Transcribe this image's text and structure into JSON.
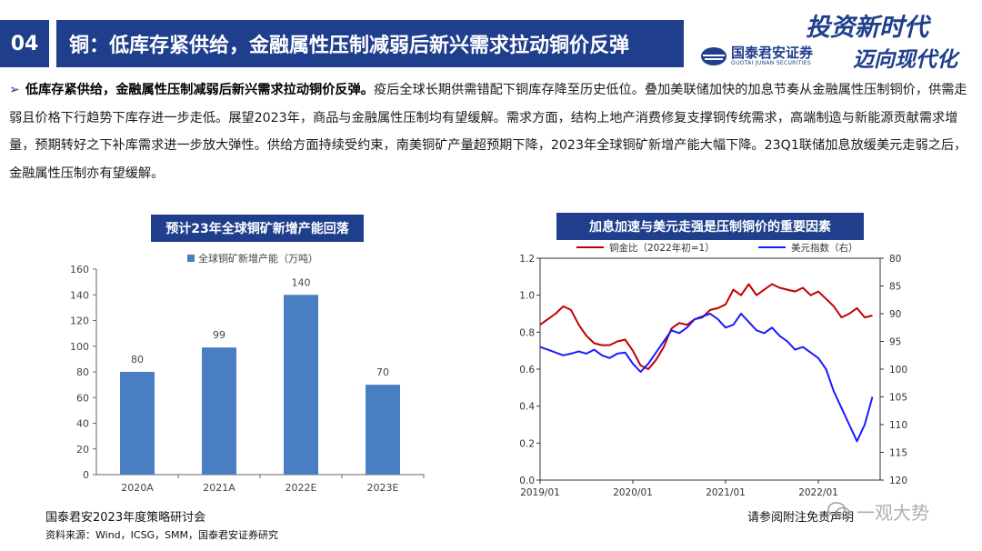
{
  "header": {
    "section_number": "04",
    "title": "铜：低库存紧供给，金融属性压制减弱后新兴需求拉动铜价反弹",
    "logo_cn": "国泰君安证券",
    "logo_en": "GUOTAI JUNAN SECURITIES",
    "slogan_line1": "投资新时代",
    "slogan_line2": "迈向现代化"
  },
  "body": {
    "lead": "低库存紧供给，金融属性压制减弱后新兴需求拉动铜价反弹。",
    "text": "疫后全球长期供需错配下铜库存降至历史低位。叠加美联储加快的加息节奏从金融属性压制铜价，供需走弱且价格下行趋势下库存进一步走低。展望2023年，商品与金融属性压制均有望缓解。需求方面，结构上地产消费修复支撑铜传统需求，高端制造与新能源贡献需求增量，预期转好之下补库需求进一步放大弹性。供给方面持续受约束，南美铜矿产量超预期下降，2023年全球铜矿新增产能大幅下降。23Q1联储加息放缓美元走弱之后，金融属性压制亦有望缓解。"
  },
  "chart_data": [
    {
      "type": "bar",
      "title": "预计23年全球铜矿新增产能回落",
      "legend": "全球铜矿新增产能（万吨）",
      "legend_position": "top-left",
      "categories": [
        "2020A",
        "2021A",
        "2022E",
        "2023E"
      ],
      "values": [
        80,
        99,
        140,
        70
      ],
      "ylim": [
        0,
        160
      ],
      "yticks": [
        0,
        20,
        40,
        60,
        80,
        100,
        120,
        140,
        160
      ],
      "color": "#4a7ec2",
      "grid": false
    },
    {
      "type": "line",
      "title": "加息加速与美元走强是压制铜价的重要因素",
      "x_ticks": [
        "2019/01",
        "2020/01",
        "2021/01",
        "2022/01"
      ],
      "y_left_ticks": [
        "0.0",
        "0.2",
        "0.4",
        "0.6",
        "0.8",
        "1.0",
        "1.2"
      ],
      "y_right_ticks": [
        "80",
        "85",
        "90",
        "95",
        "100",
        "105",
        "110",
        "115",
        "120"
      ],
      "y_left_lim": [
        0,
        1.2
      ],
      "y_right_lim": [
        80,
        120
      ],
      "y_right_inverted": true,
      "legend_position": "top",
      "series": [
        {
          "name": "铜金比（2022年初=1）",
          "axis": "left",
          "color": "#c00000",
          "points": [
            [
              0,
              0.84
            ],
            [
              1,
              0.87
            ],
            [
              2,
              0.9
            ],
            [
              3,
              0.94
            ],
            [
              4,
              0.92
            ],
            [
              5,
              0.84
            ],
            [
              6,
              0.78
            ],
            [
              7,
              0.74
            ],
            [
              8,
              0.73
            ],
            [
              9,
              0.73
            ],
            [
              10,
              0.75
            ],
            [
              11,
              0.76
            ],
            [
              12,
              0.7
            ],
            [
              13,
              0.62
            ],
            [
              14,
              0.6
            ],
            [
              15,
              0.65
            ],
            [
              16,
              0.72
            ],
            [
              17,
              0.82
            ],
            [
              18,
              0.85
            ],
            [
              19,
              0.84
            ],
            [
              20,
              0.87
            ],
            [
              21,
              0.88
            ],
            [
              22,
              0.92
            ],
            [
              23,
              0.93
            ],
            [
              24,
              0.95
            ],
            [
              25,
              1.03
            ],
            [
              26,
              1.0
            ],
            [
              27,
              1.06
            ],
            [
              28,
              1.0
            ],
            [
              29,
              1.03
            ],
            [
              30,
              1.06
            ],
            [
              31,
              1.04
            ],
            [
              32,
              1.03
            ],
            [
              33,
              1.02
            ],
            [
              34,
              1.04
            ],
            [
              35,
              1.0
            ],
            [
              36,
              1.02
            ],
            [
              37,
              0.98
            ],
            [
              38,
              0.94
            ],
            [
              39,
              0.88
            ],
            [
              40,
              0.9
            ],
            [
              41,
              0.93
            ],
            [
              42,
              0.88
            ],
            [
              43,
              0.89
            ]
          ]
        },
        {
          "name": "美元指数（右）",
          "axis": "right",
          "color": "#1a1aff",
          "points": [
            [
              0,
              96
            ],
            [
              1,
              96.5
            ],
            [
              2,
              97
            ],
            [
              3,
              97.5
            ],
            [
              4,
              97.2
            ],
            [
              5,
              96.8
            ],
            [
              6,
              97.2
            ],
            [
              7,
              96.5
            ],
            [
              8,
              97.5
            ],
            [
              9,
              98
            ],
            [
              10,
              97.2
            ],
            [
              11,
              97
            ],
            [
              12,
              99
            ],
            [
              13,
              100.5
            ],
            [
              14,
              99
            ],
            [
              15,
              97
            ],
            [
              16,
              95
            ],
            [
              17,
              93
            ],
            [
              18,
              93.5
            ],
            [
              19,
              92.5
            ],
            [
              20,
              91
            ],
            [
              21,
              90.5
            ],
            [
              22,
              90
            ],
            [
              23,
              91
            ],
            [
              24,
              92.5
            ],
            [
              25,
              92
            ],
            [
              26,
              90
            ],
            [
              27,
              91.5
            ],
            [
              28,
              93
            ],
            [
              29,
              93.5
            ],
            [
              30,
              92.5
            ],
            [
              31,
              94
            ],
            [
              32,
              95
            ],
            [
              33,
              96.5
            ],
            [
              34,
              96
            ],
            [
              35,
              97
            ],
            [
              36,
              98
            ],
            [
              37,
              100
            ],
            [
              38,
              104
            ],
            [
              39,
              107
            ],
            [
              40,
              110
            ],
            [
              41,
              113
            ],
            [
              42,
              110
            ],
            [
              43,
              105
            ]
          ]
        }
      ],
      "x_max": 44
    }
  ],
  "footer": {
    "event": "国泰君安2023年度策略研讨会",
    "source": "资料来源：Wind，ICSG，SMM，国泰君安证券研究",
    "disclaimer": "请参阅附注免责声明",
    "watermark": "一观大势"
  }
}
